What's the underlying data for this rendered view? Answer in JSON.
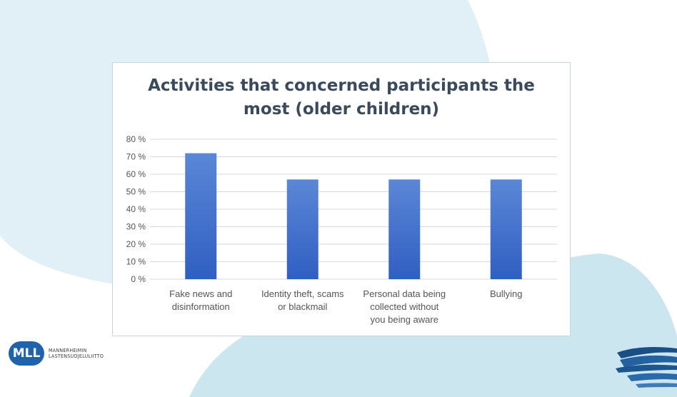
{
  "chart_data": {
    "type": "bar",
    "title_lines": [
      "Activities that concerned participants the",
      "most (older children)"
    ],
    "categories": [
      [
        "Fake news and",
        "disinformation"
      ],
      [
        "Identity theft, scams",
        "or blackmail"
      ],
      [
        "Personal data being",
        "collected without",
        "you being aware"
      ],
      [
        "Bullying"
      ]
    ],
    "values": [
      72,
      57,
      57,
      57
    ],
    "y_unit": "%",
    "ylim": [
      0,
      80
    ],
    "y_ticks": [
      "0 %",
      "10 %",
      "20 %",
      "30 %",
      "40 %",
      "50 %",
      "60 %",
      "70 %",
      "80 %"
    ],
    "grid": true,
    "legend": "none",
    "colors": {
      "bar_top": "#5b87d6",
      "bar_bottom": "#2f5fc2",
      "grid": "#d9d9d9",
      "tick_text": "#555555"
    }
  },
  "logo": {
    "badge": "MLL",
    "lines": [
      "MANNERHEIMIN",
      "LASTENSUOJELULIITTO"
    ]
  },
  "colors": {
    "bg_shape_light": "#e1f0f6",
    "bg_shape_mid": "#cce6ef",
    "brand": "#1f63ad"
  }
}
